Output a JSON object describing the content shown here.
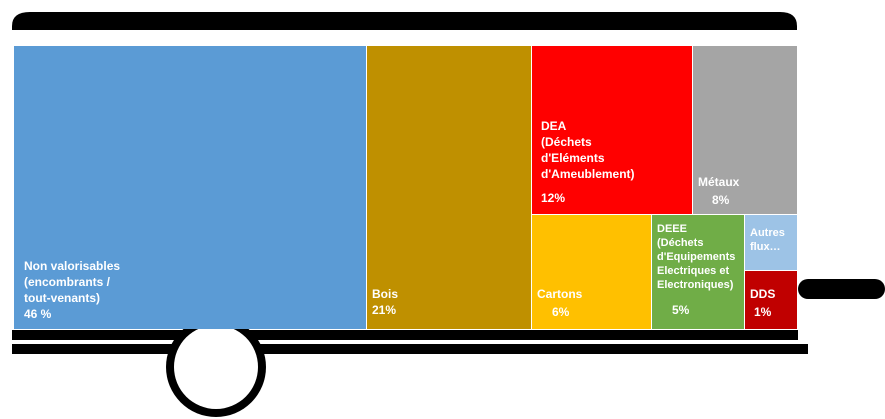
{
  "chart_data": {
    "type": "treemap",
    "categories": [
      "Non valorisables\n(encombrants /\ntout-venants)",
      "Bois",
      "DEA\n(Déchets\nd'Eléments\nd'Ameublement)",
      "Métaux",
      "Cartons",
      "DEEE\n(Déchets\nd'Equipements\nElectriques et\nElectroniques)",
      "Autres\nflux…",
      "DDS"
    ],
    "values": [
      46,
      21,
      12,
      8,
      6,
      5,
      1,
      1
    ],
    "value_labels": [
      "46 %",
      "21%",
      "12%",
      "8%",
      "6%",
      "5%",
      null,
      "1%"
    ],
    "colors": [
      "#5b9bd5",
      "#bf9000",
      "#ff0000",
      "#a5a5a5",
      "#ffc000",
      "#70ad47",
      "#9dc3e6",
      "#c00000"
    ]
  }
}
